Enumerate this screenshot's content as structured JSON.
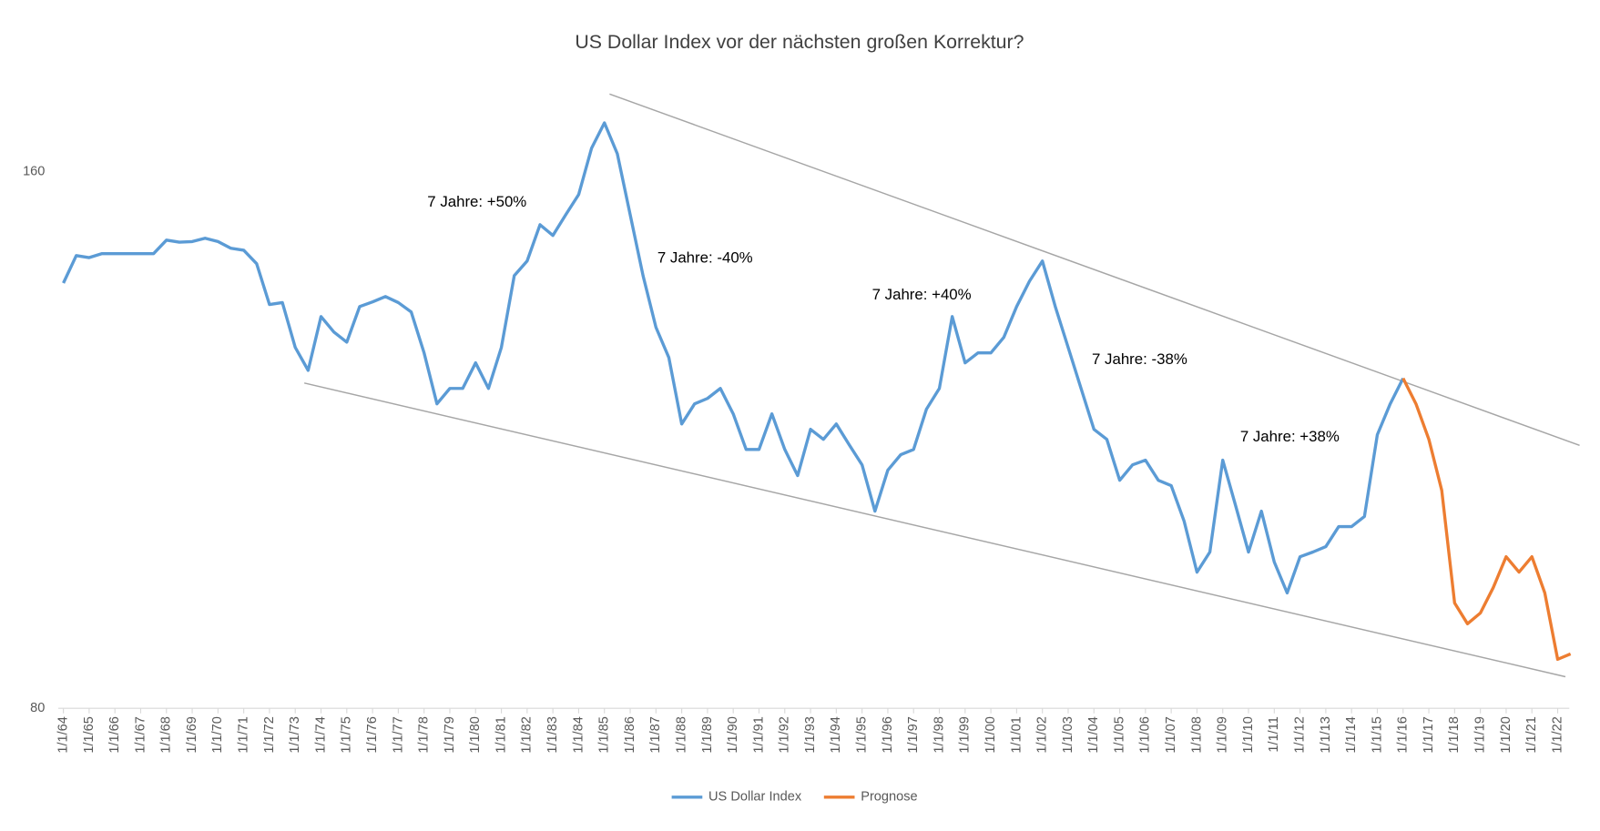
{
  "chart_data": {
    "type": "line",
    "title": "US Dollar Index vor der nächsten großen Korrektur?",
    "categories": [
      "1/1/64",
      null,
      "1/1/65",
      null,
      "1/1/66",
      null,
      "1/1/67",
      null,
      "1/1/68",
      null,
      "1/1/69",
      null,
      "1/1/70",
      null,
      "1/1/71",
      null,
      "1/1/72",
      null,
      "1/1/73",
      null,
      "1/1/74",
      null,
      "1/1/75",
      null,
      "1/1/76",
      null,
      "1/1/77",
      null,
      "1/1/78",
      null,
      "1/1/79",
      null,
      "1/1/80",
      null,
      "1/1/81",
      null,
      "1/1/82",
      null,
      "1/1/83",
      null,
      "1/1/84",
      null,
      "1/1/85",
      null,
      "1/1/86",
      null,
      "1/1/87",
      null,
      "1/1/88",
      null,
      "1/1/89",
      null,
      "1/1/90",
      null,
      "1/1/91",
      null,
      "1/1/92",
      null,
      "1/1/93",
      null,
      "1/1/94",
      null,
      "1/1/95",
      null,
      "1/1/96",
      null,
      "1/1/97",
      null,
      "1/1/98",
      null,
      "1/1/99",
      null,
      "1/1/00",
      null,
      "1/1/01",
      null,
      "1/1/02",
      null,
      "1/1/03",
      null,
      "1/1/04",
      null,
      "1/1/05",
      null,
      "1/1/06",
      null,
      "1/1/07",
      null,
      "1/1/08",
      null,
      "1/1/09",
      null,
      "1/1/10",
      null,
      "1/1/11",
      null,
      "1/1/12",
      null,
      "1/1/13",
      null,
      "1/1/14",
      null,
      "1/1/15",
      null,
      "1/1/16",
      null,
      "1/1/17",
      null,
      "1/1/18",
      null,
      "1/1/19",
      null,
      "1/1/20",
      null,
      "1/1/21",
      null,
      "1/1/22",
      null
    ],
    "series": [
      {
        "name": "US Dollar Index",
        "color": "#5b9bd5",
        "values": [
          143.4,
          147.5,
          147.2,
          147.8,
          147.8,
          147.8,
          147.8,
          147.8,
          149.8,
          149.5,
          149.6,
          150.1,
          149.6,
          148.6,
          148.3,
          146.3,
          140.2,
          140.5,
          133.8,
          130.4,
          138.4,
          136.1,
          134.6,
          139.9,
          140.6,
          141.4,
          140.5,
          139.1,
          133.0,
          125.4,
          127.7,
          127.7,
          131.5,
          127.7,
          133.8,
          144.5,
          146.7,
          152.1,
          150.5,
          153.6,
          156.6,
          163.5,
          167.3,
          162.7,
          153.6,
          144.5,
          136.8,
          132.3,
          122.4,
          125.4,
          126.2,
          127.7,
          123.9,
          118.6,
          118.6,
          123.9,
          118.6,
          114.7,
          121.6,
          120.1,
          122.4,
          119.3,
          116.3,
          109.4,
          115.5,
          117.8,
          118.6,
          124.6,
          127.7,
          138.4,
          131.5,
          133.0,
          133.0,
          135.3,
          139.9,
          143.7,
          146.7,
          139.9,
          133.8,
          127.7,
          121.6,
          120.1,
          114.0,
          116.3,
          117.0,
          114.0,
          113.2,
          107.9,
          100.3,
          103.3,
          117.0,
          110.2,
          103.3,
          109.4,
          101.8,
          97.2,
          102.6,
          103.3,
          104.1,
          107.1,
          107.1,
          108.6,
          120.8,
          125.4,
          129.2,
          null,
          null,
          null,
          null,
          null,
          null,
          null,
          null,
          null,
          null,
          null,
          null,
          null
        ]
      },
      {
        "name": "Prognose",
        "color": "#ed7d31",
        "values": [
          null,
          null,
          null,
          null,
          null,
          null,
          null,
          null,
          null,
          null,
          null,
          null,
          null,
          null,
          null,
          null,
          null,
          null,
          null,
          null,
          null,
          null,
          null,
          null,
          null,
          null,
          null,
          null,
          null,
          null,
          null,
          null,
          null,
          null,
          null,
          null,
          null,
          null,
          null,
          null,
          null,
          null,
          null,
          null,
          null,
          null,
          null,
          null,
          null,
          null,
          null,
          null,
          null,
          null,
          null,
          null,
          null,
          null,
          null,
          null,
          null,
          null,
          null,
          null,
          null,
          null,
          null,
          null,
          null,
          null,
          null,
          null,
          null,
          null,
          null,
          null,
          null,
          null,
          null,
          null,
          null,
          null,
          null,
          null,
          null,
          null,
          null,
          null,
          null,
          null,
          null,
          null,
          null,
          null,
          null,
          null,
          null,
          null,
          null,
          null,
          null,
          null,
          null,
          null,
          129.2,
          125.4,
          120.1,
          112.5,
          95.7,
          92.6,
          94.2,
          98.0,
          102.6,
          100.3,
          102.6,
          97.2,
          87.3,
          88.1
        ]
      }
    ],
    "trendlines": [
      {
        "color": "#a6a6a6",
        "x": [
          42.4,
          117.7
        ],
        "y": [
          171.6,
          119.2
        ]
      },
      {
        "color": "#a6a6a6",
        "x": [
          18.7,
          116.6
        ],
        "y": [
          128.5,
          84.7
        ]
      }
    ],
    "annotations": [
      "7 Jahre: +50%",
      "7 Jahre: -40%",
      "7 Jahre: +40%",
      "7 Jahre: -38%",
      "7 Jahre: +38%"
    ],
    "ylim": [
      80,
      176
    ],
    "yticks": [
      80,
      160
    ],
    "grid": false,
    "legend": "bottom"
  }
}
